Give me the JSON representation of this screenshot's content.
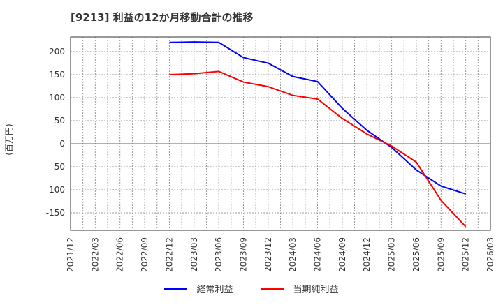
{
  "title": "[9213]  利益の12か月移動合計の推移",
  "chart_data": {
    "type": "line",
    "title": "[9213]  利益の12か月移動合計の推移",
    "xlabel": "",
    "ylabel": "(百万円)",
    "ylim": [
      -190,
      232
    ],
    "yticks": [
      200,
      150,
      100,
      50,
      0,
      -50,
      -100,
      -150
    ],
    "categories": [
      "2021/12",
      "2022/03",
      "2022/06",
      "2022/09",
      "2022/12",
      "2023/03",
      "2023/06",
      "2023/09",
      "2023/12",
      "2024/03",
      "2024/06",
      "2024/09",
      "2024/12",
      "2025/03",
      "2025/06",
      "2025/09",
      "2025/12",
      "2026/03"
    ],
    "grid": true,
    "legend_position": "bottom",
    "series": [
      {
        "name": "経常利益",
        "color": "#0000ff",
        "values": [
          null,
          null,
          null,
          null,
          220,
          221,
          220,
          187,
          175,
          146,
          135,
          77,
          29,
          -8,
          -57,
          -92,
          -109,
          null
        ]
      },
      {
        "name": "当期純利益",
        "color": "#ff0000",
        "values": [
          null,
          null,
          null,
          null,
          150,
          152,
          157,
          134,
          124,
          105,
          97,
          55,
          21,
          -5,
          -40,
          -123,
          -180,
          null
        ]
      }
    ]
  },
  "legend": [
    {
      "label": "経常利益",
      "color": "#0000ff"
    },
    {
      "label": "当期純利益",
      "color": "#ff0000"
    }
  ]
}
